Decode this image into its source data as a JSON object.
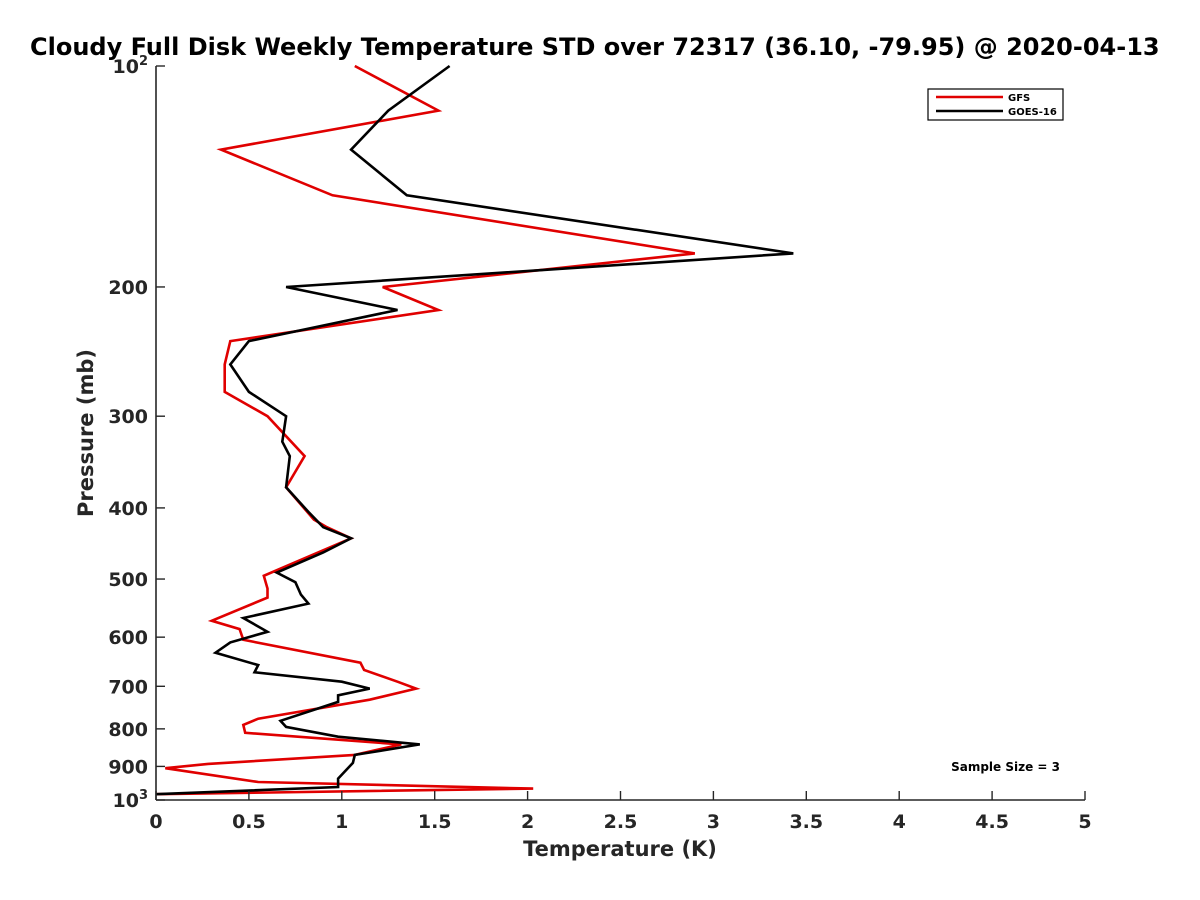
{
  "chart_data": {
    "type": "line",
    "title": "Cloudy Full Disk Weekly Temperature STD over 72317 (36.10, -79.95) @ 2020-04-13",
    "xlabel": "Temperature (K)",
    "ylabel": "Pressure (mb)",
    "xlim": [
      0,
      5
    ],
    "ylim": [
      100,
      1000
    ],
    "y_scale": "log",
    "y_reversed": true,
    "grid": false,
    "legend_position": "top-right",
    "x_ticks": [
      "0",
      "0.5",
      "1",
      "1.5",
      "2",
      "2.5",
      "3",
      "3.5",
      "4",
      "4.5",
      "5"
    ],
    "y_ticks": [
      {
        "value": 100,
        "base": "10",
        "exp": "2"
      },
      {
        "value": 200,
        "label": "200"
      },
      {
        "value": 300,
        "label": "300"
      },
      {
        "value": 400,
        "label": "400"
      },
      {
        "value": 500,
        "label": "500"
      },
      {
        "value": 600,
        "label": "600"
      },
      {
        "value": 700,
        "label": "700"
      },
      {
        "value": 800,
        "label": "800"
      },
      {
        "value": 900,
        "label": "900"
      },
      {
        "value": 1000,
        "base": "10",
        "exp": "3"
      }
    ],
    "annotation": "Sample Size = 3",
    "series": [
      {
        "name": "GFS",
        "color": "#e00000",
        "points": [
          [
            1.07,
            100
          ],
          [
            1.52,
            115
          ],
          [
            0.35,
            130
          ],
          [
            0.95,
            150
          ],
          [
            2.9,
            180
          ],
          [
            1.22,
            200
          ],
          [
            1.52,
            215
          ],
          [
            0.4,
            237
          ],
          [
            0.37,
            255
          ],
          [
            0.37,
            278
          ],
          [
            0.6,
            300
          ],
          [
            0.8,
            340
          ],
          [
            0.7,
            375
          ],
          [
            0.85,
            415
          ],
          [
            0.92,
            425
          ],
          [
            1.05,
            440
          ],
          [
            0.58,
            495
          ],
          [
            0.6,
            515
          ],
          [
            0.6,
            530
          ],
          [
            0.3,
            570
          ],
          [
            0.45,
            585
          ],
          [
            0.47,
            605
          ],
          [
            1.1,
            650
          ],
          [
            1.12,
            665
          ],
          [
            1.3,
            690
          ],
          [
            1.4,
            705
          ],
          [
            1.15,
            730
          ],
          [
            0.55,
            775
          ],
          [
            0.47,
            790
          ],
          [
            0.48,
            810
          ],
          [
            1.32,
            840
          ],
          [
            1.07,
            868
          ],
          [
            0.28,
            893
          ],
          [
            0.05,
            905
          ],
          [
            0.55,
            945
          ],
          [
            2.03,
            965
          ],
          [
            0.0,
            982
          ]
        ]
      },
      {
        "name": "GOES-16",
        "color": "#000000",
        "points": [
          [
            1.58,
            100
          ],
          [
            1.25,
            115
          ],
          [
            1.05,
            130
          ],
          [
            1.35,
            150
          ],
          [
            3.43,
            180
          ],
          [
            0.7,
            200
          ],
          [
            1.3,
            215
          ],
          [
            0.5,
            237
          ],
          [
            0.4,
            255
          ],
          [
            0.5,
            278
          ],
          [
            0.7,
            300
          ],
          [
            0.68,
            325
          ],
          [
            0.72,
            340
          ],
          [
            0.7,
            375
          ],
          [
            0.82,
            405
          ],
          [
            0.9,
            425
          ],
          [
            1.05,
            440
          ],
          [
            0.9,
            460
          ],
          [
            0.65,
            490
          ],
          [
            0.75,
            505
          ],
          [
            0.78,
            525
          ],
          [
            0.82,
            540
          ],
          [
            0.47,
            565
          ],
          [
            0.6,
            590
          ],
          [
            0.4,
            610
          ],
          [
            0.32,
            630
          ],
          [
            0.55,
            655
          ],
          [
            0.53,
            670
          ],
          [
            1.0,
            690
          ],
          [
            1.15,
            705
          ],
          [
            0.98,
            720
          ],
          [
            0.98,
            735
          ],
          [
            0.67,
            780
          ],
          [
            0.7,
            795
          ],
          [
            0.98,
            820
          ],
          [
            1.42,
            840
          ],
          [
            1.07,
            868
          ],
          [
            1.06,
            890
          ],
          [
            0.98,
            935
          ],
          [
            0.98,
            960
          ],
          [
            0.0,
            982
          ]
        ]
      }
    ]
  }
}
